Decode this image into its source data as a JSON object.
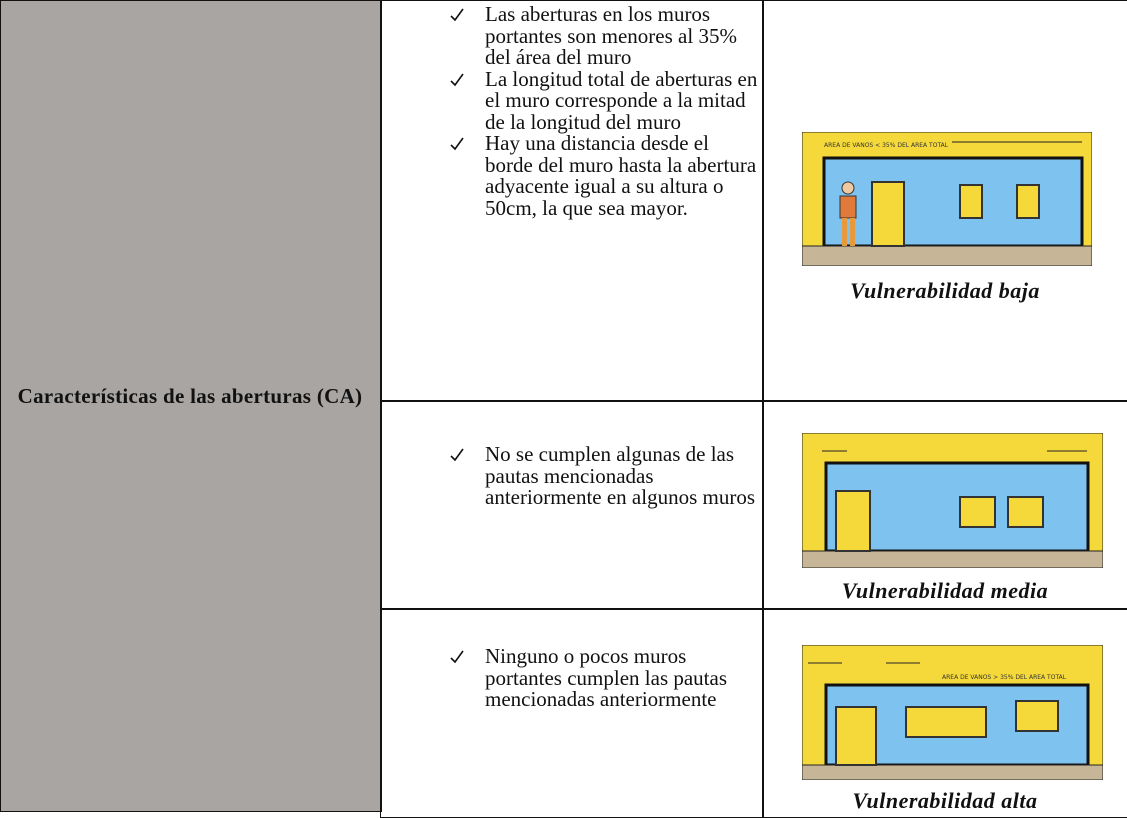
{
  "table": {
    "header": "Características de las aberturas (CA)",
    "rows": [
      {
        "criteria": [
          "Las aberturas en los muros portantes son menores al 35% del área del muro",
          "La longitud total de aberturas en el muro corresponde a la mitad de la longitud del muro",
          "Hay una distancia desde el borde del muro hasta la abertura adyacente igual a su altura o 50cm, la que sea mayor."
        ],
        "figure_note": "AREA DE VANOS < 35% DEL AREA TOTAL",
        "caption": "Vulnerabilidad baja"
      },
      {
        "criteria": [
          "No se cumplen algunas de las pautas mencionadas anteriormente en algunos muros"
        ],
        "caption": "Vulnerabilidad media"
      },
      {
        "criteria": [
          "Ninguno o pocos muros portantes cumplen las pautas mencionadas anteriormente"
        ],
        "figure_note": "AREA DE VANOS > 35% DEL AREA TOTAL",
        "caption": "Vulnerabilidad alta"
      }
    ]
  }
}
